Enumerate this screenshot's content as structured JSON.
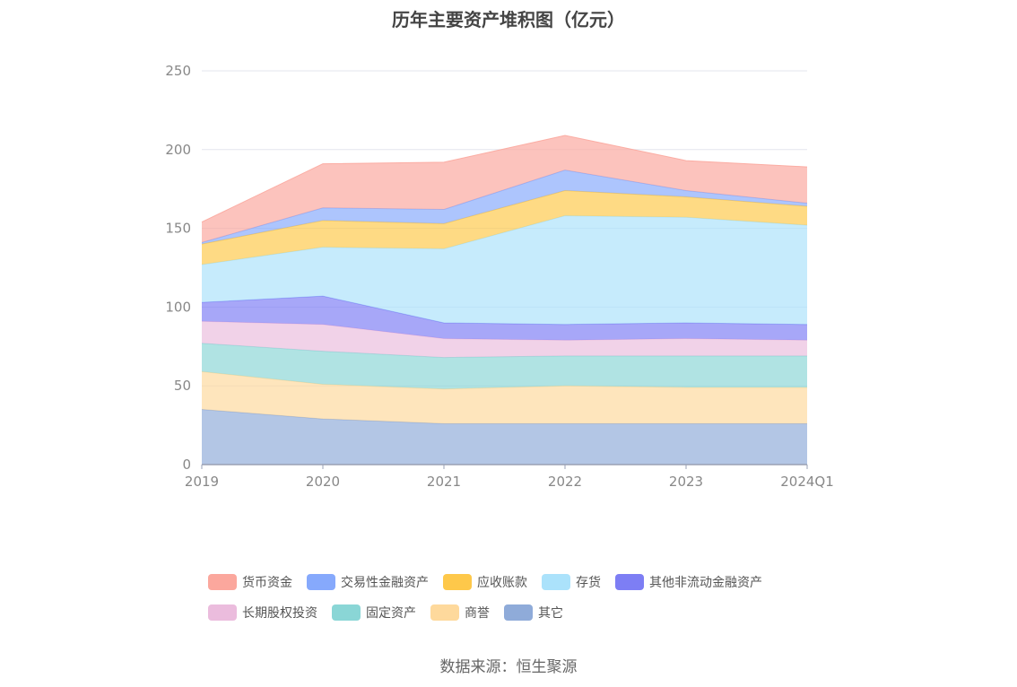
{
  "chart_data": {
    "type": "area",
    "stacked": true,
    "title": "历年主要资产堆积图（亿元）",
    "categories": [
      "2019",
      "2020",
      "2021",
      "2022",
      "2023",
      "2024Q1"
    ],
    "ylim": [
      0,
      250
    ],
    "yticks": [
      0,
      50,
      100,
      150,
      200,
      250
    ],
    "grid": true,
    "legend_position": "bottom",
    "series": [
      {
        "name": "其它",
        "color": "#8fabd9",
        "values": [
          35,
          29,
          26,
          26,
          26,
          26
        ]
      },
      {
        "name": "商誉",
        "color": "#fed99c",
        "values": [
          24,
          22,
          22,
          24,
          23,
          23
        ]
      },
      {
        "name": "固定资产",
        "color": "#8ad6d6",
        "values": [
          18,
          21,
          20,
          19,
          20,
          20
        ]
      },
      {
        "name": "长期股权投资",
        "color": "#ebbcdd",
        "values": [
          14,
          17,
          12,
          10,
          11,
          10
        ]
      },
      {
        "name": "其他非流动金融资产",
        "color": "#7d7ef4",
        "values": [
          12,
          18,
          10,
          10,
          10,
          10
        ]
      },
      {
        "name": "存货",
        "color": "#abe2fb",
        "values": [
          24,
          31,
          47,
          69,
          67,
          63
        ]
      },
      {
        "name": "应收账款",
        "color": "#fec84a",
        "values": [
          13,
          17,
          16,
          16,
          13,
          12
        ]
      },
      {
        "name": "交易性金融资产",
        "color": "#86a9fc",
        "values": [
          1,
          8,
          9,
          13,
          4,
          2
        ]
      },
      {
        "name": "货币资金",
        "color": "#fba79d",
        "values": [
          13,
          28,
          30,
          22,
          19,
          23
        ]
      }
    ]
  },
  "legend_rows": [
    [
      "货币资金",
      "交易性金融资产",
      "应收账款",
      "存货",
      "其他非流动金融资产"
    ],
    [
      "长期股权投资",
      "固定资产",
      "商誉",
      "其它"
    ]
  ],
  "source": "数据来源：恒生聚源"
}
